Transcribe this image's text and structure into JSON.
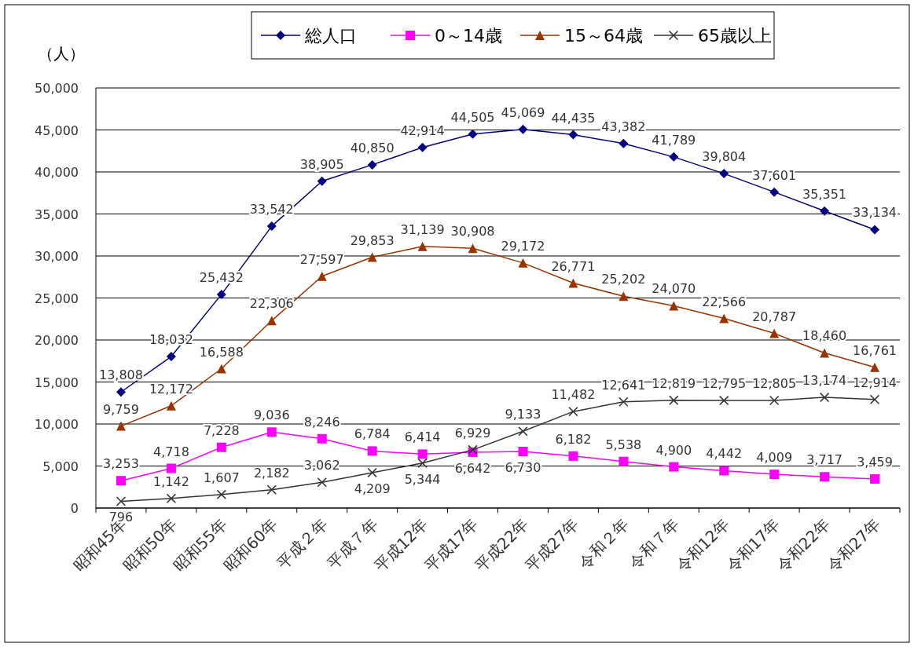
{
  "chart_data": {
    "type": "line",
    "ylabel": "（人）",
    "categories": [
      "昭和45年",
      "昭和50年",
      "昭和55年",
      "昭和60年",
      "平成２年",
      "平成７年",
      "平成12年",
      "平成17年",
      "平成22年",
      "平成27年",
      "令和２年",
      "令和７年",
      "令和12年",
      "令和17年",
      "令和22年",
      "令和27年"
    ],
    "series": [
      {
        "name": "総人口",
        "color": "#000080",
        "marker": "diamond",
        "values": [
          13808,
          18032,
          25432,
          33542,
          38905,
          40850,
          42914,
          44505,
          45069,
          44435,
          43382,
          41789,
          39804,
          37601,
          35351,
          33134
        ],
        "value_labels": [
          "13,808",
          "18,032",
          "25,432",
          "33,542",
          "38,905",
          "40,850",
          "42,914",
          "44,505",
          "45,069",
          "44,435",
          "43,382",
          "41,789",
          "39,804",
          "37,601",
          "35,351",
          "33,134"
        ]
      },
      {
        "name": "0～14歳",
        "color": "#ff00ff",
        "marker": "square",
        "values": [
          3253,
          4718,
          7228,
          9036,
          8246,
          6784,
          6414,
          6642,
          6730,
          6182,
          5538,
          4900,
          4442,
          4009,
          3717,
          3459
        ],
        "value_labels": [
          "3,253",
          "4,718",
          "7,228",
          "9,036",
          "8,246",
          "6,784",
          "6,414",
          "6,642",
          "6,730",
          "6,182",
          "5,538",
          "4,900",
          "4,442",
          "4,009",
          "3,717",
          "3,459"
        ]
      },
      {
        "name": "15～64歳",
        "color": "#993300",
        "marker": "triangle",
        "values": [
          9759,
          12172,
          16588,
          22306,
          27597,
          29853,
          31139,
          30908,
          29172,
          26771,
          25202,
          24070,
          22566,
          20787,
          18460,
          16761
        ],
        "value_labels": [
          "9,759",
          "12,172",
          "16,588",
          "22,306",
          "27,597",
          "29,853",
          "31,139",
          "30,908",
          "29,172",
          "26,771",
          "25,202",
          "24,070",
          "22,566",
          "20,787",
          "18,460",
          "16,761"
        ]
      },
      {
        "name": "65歳以上",
        "color": "#333333",
        "marker": "cross",
        "values": [
          796,
          1142,
          1607,
          2182,
          3062,
          4209,
          5344,
          6929,
          9133,
          11482,
          12641,
          12819,
          12795,
          12805,
          13174,
          12914
        ],
        "value_labels": [
          "796",
          "1,142",
          "1,607",
          "2,182",
          "3,062",
          "4,209",
          "5,344",
          "6,929",
          "9,133",
          "11,482",
          "12,641",
          "12,819",
          "12,795",
          "12,805",
          "13,174",
          "12,914"
        ]
      }
    ],
    "ylim": [
      0,
      50000
    ],
    "yticks": [
      0,
      {
        "value": 5000,
        "label": "5,000"
      },
      {
        "value": 10000,
        "label": "10,000"
      },
      {
        "value": 15000,
        "label": "15,000"
      },
      {
        "value": 20000,
        "label": "20,000"
      },
      {
        "value": 25000,
        "label": "25,000"
      },
      {
        "value": 30000,
        "label": "30,000"
      },
      {
        "value": 35000,
        "label": "35,000"
      },
      {
        "value": 40000,
        "label": "40,000"
      },
      {
        "value": 45000,
        "label": "45,000"
      },
      {
        "value": 50000,
        "label": "50,000"
      }
    ],
    "grid": "y",
    "legend": "top"
  }
}
